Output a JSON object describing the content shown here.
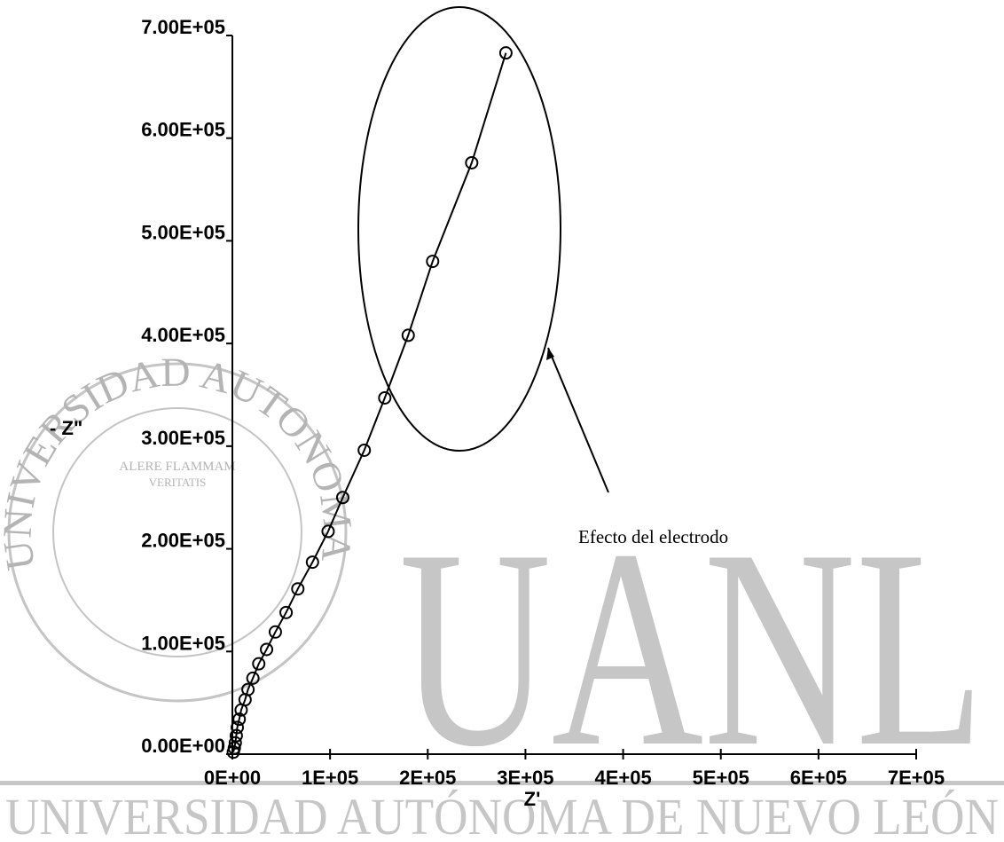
{
  "chart_data": {
    "type": "line",
    "x_label": "Z'",
    "y_label": "- Z\"",
    "annotation": "Efecto del electrodo",
    "x": [
      1000,
      2000,
      3000,
      4000,
      5000,
      7000,
      9000,
      13000,
      16000,
      21000,
      27000,
      35000,
      44000,
      55000,
      67000,
      82000,
      98000,
      113000,
      135000,
      156000,
      180000,
      205000,
      245000,
      280000
    ],
    "series": [
      {
        "name": "Z",
        "color": "#000000",
        "values": [
          2000,
          6000,
          11000,
          18000,
          26000,
          34000,
          43000,
          53000,
          63000,
          74000,
          88000,
          102000,
          119000,
          138000,
          161000,
          187000,
          217000,
          250000,
          296000,
          347000,
          408000,
          480000,
          576000,
          683000
        ]
      }
    ],
    "xlim": [
      0,
      700000
    ],
    "ylim": [
      0,
      700000
    ],
    "xticks": [
      {
        "value": 0,
        "label": "0E+00"
      },
      {
        "value": 100000,
        "label": "1E+05"
      },
      {
        "value": 200000,
        "label": "2E+05"
      },
      {
        "value": 300000,
        "label": "3E+05"
      },
      {
        "value": 400000,
        "label": "4E+05"
      },
      {
        "value": 500000,
        "label": "5E+05"
      },
      {
        "value": 600000,
        "label": "6E+05"
      },
      {
        "value": 700000,
        "label": "7E+05"
      }
    ],
    "yticks": [
      {
        "value": 0,
        "label": "0.00E+00"
      },
      {
        "value": 100000,
        "label": "1.00E+05"
      },
      {
        "value": 200000,
        "label": "2.00E+05"
      },
      {
        "value": 300000,
        "label": "3.00E+05"
      },
      {
        "value": 400000,
        "label": "4.00E+05"
      },
      {
        "value": 500000,
        "label": "5.00E+05"
      },
      {
        "value": 600000,
        "label": "6.00E+05"
      },
      {
        "value": 700000,
        "label": "7.00E+05"
      }
    ],
    "grid": false
  },
  "watermark": {
    "logo": "UANL",
    "university": "UNIVERSIDAD AUTÓNOMA DE NUEVO LEÓN",
    "seal_ring": "UNIVERSIDAD AUTONOMA DE NUEVO LEON",
    "motto_1": "ALERE FLAMMAM",
    "motto_2": "VERITATIS"
  }
}
